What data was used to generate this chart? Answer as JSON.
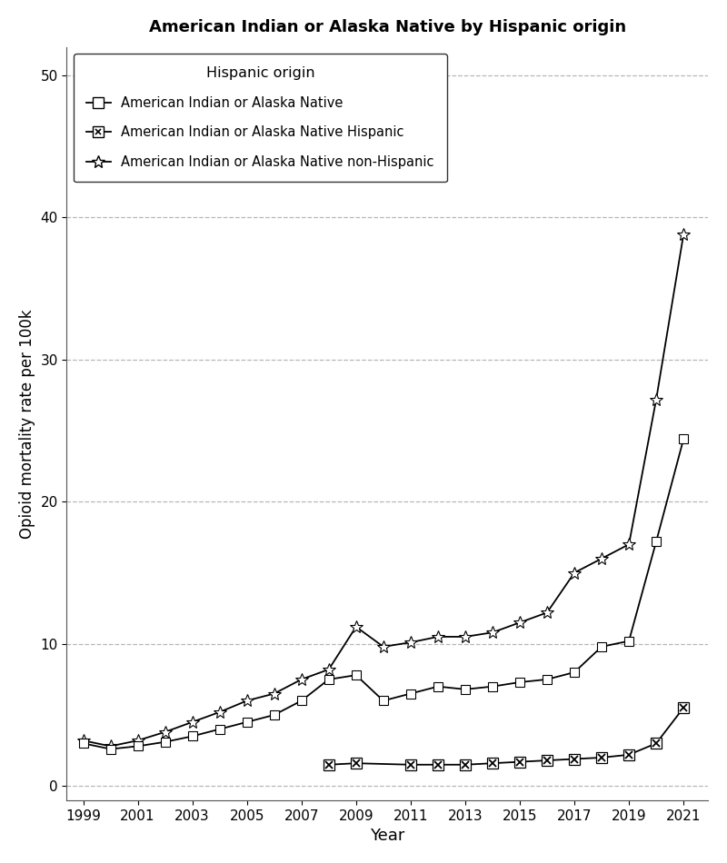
{
  "title": "American Indian or Alaska Native by Hispanic origin",
  "xlabel": "Year",
  "ylabel": "Opioid mortality rate per 100k",
  "legend_title": "Hispanic origin",
  "years": [
    1999,
    2000,
    2001,
    2002,
    2003,
    2004,
    2005,
    2006,
    2007,
    2008,
    2009,
    2010,
    2011,
    2012,
    2013,
    2014,
    2015,
    2016,
    2017,
    2018,
    2019,
    2020,
    2021
  ],
  "aian": [
    3.0,
    2.6,
    2.8,
    3.1,
    3.5,
    4.0,
    4.5,
    5.0,
    6.0,
    7.5,
    7.8,
    6.0,
    6.5,
    7.0,
    6.8,
    7.0,
    7.3,
    7.5,
    8.0,
    9.8,
    10.2,
    17.2,
    24.4
  ],
  "aian_nonhisp": [
    3.2,
    2.8,
    3.2,
    3.8,
    4.5,
    5.2,
    6.0,
    6.5,
    7.5,
    8.2,
    11.2,
    9.8,
    10.1,
    10.5,
    10.5,
    10.8,
    11.5,
    12.2,
    15.0,
    16.0,
    17.0,
    27.2,
    38.8
  ],
  "aian_hisp_years": [
    2008,
    2009,
    2011,
    2012,
    2013,
    2014,
    2015,
    2016,
    2017,
    2018,
    2019,
    2020,
    2021
  ],
  "aian_hisp_vals": [
    1.5,
    1.6,
    1.5,
    1.5,
    1.5,
    1.6,
    1.7,
    1.8,
    1.9,
    2.0,
    2.2,
    3.0,
    5.5
  ],
  "ylim": [
    -1,
    52
  ],
  "yticks": [
    0,
    10,
    20,
    30,
    40,
    50
  ],
  "xticks": [
    1999,
    2001,
    2003,
    2005,
    2007,
    2009,
    2011,
    2013,
    2015,
    2017,
    2019,
    2021
  ],
  "line_color": "#000000",
  "background_color": "#ffffff",
  "grid_color": "#aaaaaa",
  "legend_labels": [
    "American Indian or Alaska Native",
    "American Indian or Alaska Native Hispanic",
    "American Indian or Alaska Native non-Hispanic"
  ]
}
